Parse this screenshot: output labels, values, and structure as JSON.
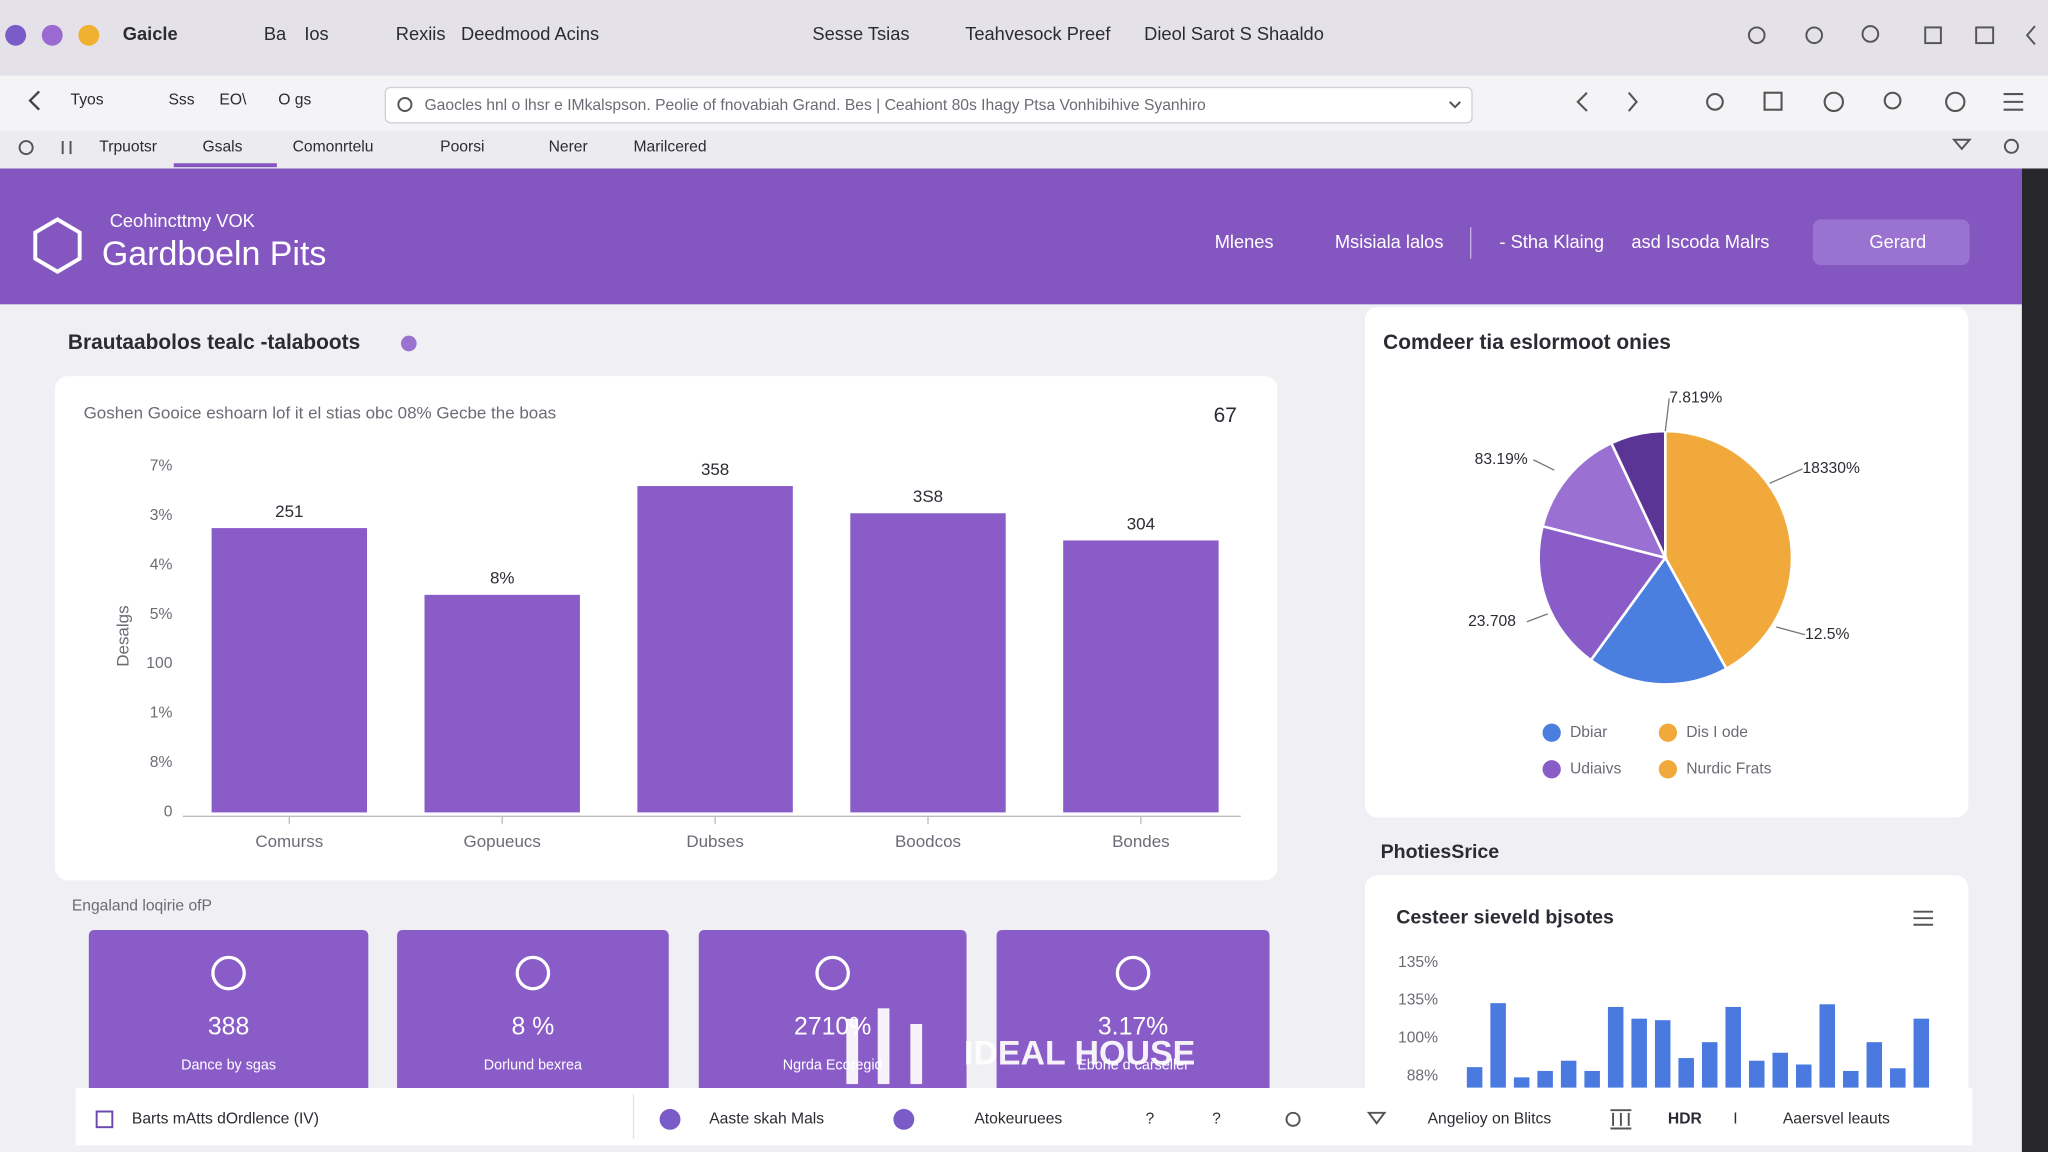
{
  "browser": {
    "tabs_top": [
      "Gaicle",
      "Ba",
      "Ios",
      "Rexiis",
      "Deedmood Acins",
      "Sesse Tsias",
      "Teahvesock Preef",
      "Dieol Sarot S Shaaldo"
    ],
    "toolbar": [
      "Tyos",
      "Sss",
      "EO\\",
      "O gs"
    ],
    "address": "Gaocles hnl o lhsr e IMkalspson. Peolie of fnovabiah Grand. Bes | Ceahiont 80s Ihagy Ptsa Vonhibihive Syanhiro",
    "page_tabs": [
      "Trpuotsr",
      "Gsals",
      "Comonrtelu",
      "Poorsi",
      "Nerer",
      "Marilcered"
    ]
  },
  "header": {
    "kicker": "Ceohincttmy VOK",
    "title": "Gardboeln Pits",
    "nav": [
      "Mlenes",
      "Msisiala lalos",
      "- Stha Klaing",
      "asd Iscoda Malrs"
    ],
    "button": "Gerard"
  },
  "section_title": "Brautaabolos tealc -talaboots",
  "bar_card": {
    "badge": "67"
  },
  "chart_data": [
    {
      "type": "bar",
      "title": "Goshen Gooice eshoarn lof it el stias obc 08% Gecbe the boas",
      "y_label": "Desalgs",
      "categories": [
        "Comurss",
        "Gopueucs",
        "Dubses",
        "Boodcos",
        "Bondes"
      ],
      "values": [
        5.75,
        4.4,
        6.6,
        6.05,
        5.5
      ],
      "annotations": [
        "251",
        "8%",
        "358",
        "3S8",
        "304"
      ],
      "color": "#8a5cc8",
      "ylim": [
        0,
        7
      ],
      "yticks": [
        0,
        {
          "value": 1,
          "label": "8%"
        },
        {
          "value": 2,
          "label": "1%"
        },
        {
          "value": 3,
          "label": "100"
        },
        {
          "value": 4,
          "label": "5%"
        },
        {
          "value": 5,
          "label": "4%"
        },
        {
          "value": 6,
          "label": "3%"
        },
        {
          "value": 7,
          "label": "7%"
        }
      ],
      "grid": false
    },
    {
      "type": "pie",
      "title": "Comdeer tia eslormoot onies",
      "values": [
        42,
        18,
        19,
        14,
        7
      ],
      "colors": [
        "#f0a93a",
        "#4a7fdf",
        "#8a5cc8",
        "#9a70d2",
        "#5b3596"
      ],
      "annotations": [
        "7.819%",
        "83.19%",
        "18330%",
        "23.708",
        "12.5%"
      ],
      "legend": [
        {
          "name": "Dbiar",
          "color": "#4a7fdf"
        },
        {
          "name": "Dis I ode",
          "color": "#f0a93a"
        },
        {
          "name": "Udiaivs",
          "color": "#8a5cc8"
        },
        {
          "name": "Nurdic Frats",
          "color": "#f0a93a"
        }
      ]
    },
    {
      "type": "bar",
      "title": "Cesteer sieveld bjsotes",
      "categories": [
        null,
        null,
        null,
        null,
        null,
        null,
        null,
        null,
        null,
        null,
        null,
        null,
        null,
        null,
        null,
        null,
        null,
        null,
        null,
        null
      ],
      "values": [
        1.24,
        2.93,
        0.97,
        1.14,
        1.41,
        1.14,
        2.83,
        2.52,
        2.48,
        1.48,
        1.9,
        2.83,
        1.41,
        1.62,
        1.31,
        2.9,
        1.14,
        1.9,
        1.21,
        2.52
      ],
      "color": "#4a7ae0",
      "ylim": [
        0.7,
        4
      ],
      "yticks": [
        {
          "value": 1,
          "label": "88%"
        },
        {
          "value": 2,
          "label": "100%"
        },
        {
          "value": 3,
          "label": "135%"
        },
        {
          "value": 4,
          "label": "135%"
        }
      ],
      "grid": false
    }
  ],
  "side_title": "PhotiesSrice",
  "kpi_title": "Engaland loqirie ofP",
  "kpis": [
    {
      "value": "388",
      "label": "Dance by sgas"
    },
    {
      "value": "8 %",
      "label": "Dorlund bexrea"
    },
    {
      "value": "2710%",
      "label": "Ngrda Ecoregid"
    },
    {
      "value": "3.17%",
      "label": "Eborle d carseller"
    }
  ],
  "watermark": "IDEAL HOUSE",
  "footer": [
    "Barts mAtts dOrdlence (IV)",
    "Aaste skah Mals",
    "Atokeuruees",
    "?",
    "?",
    "Angelioy on Blitcs",
    "HDR",
    "I",
    "Aaersvel leauts"
  ]
}
